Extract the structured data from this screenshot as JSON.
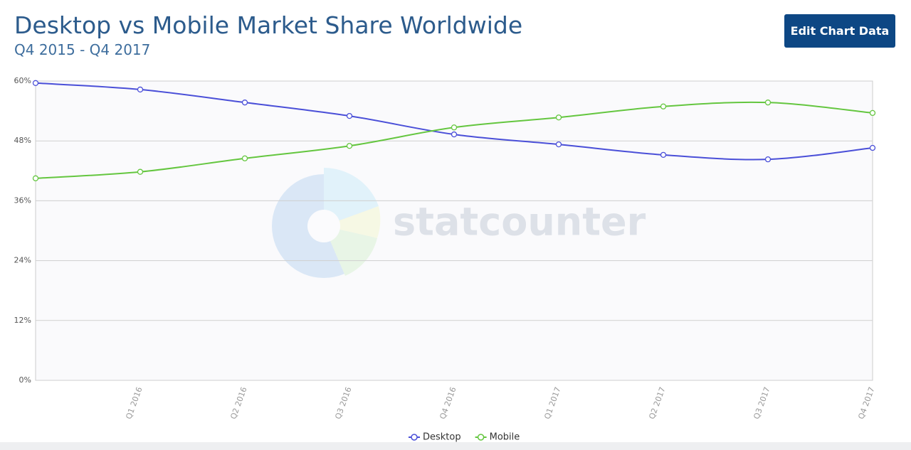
{
  "header": {
    "title": "Desktop vs Mobile Market Share Worldwide",
    "subtitle": "Q4 2015 - Q4 2017"
  },
  "button": {
    "label": "Edit Chart Data"
  },
  "watermark": "statcounter",
  "chart_data": {
    "type": "line",
    "categories": [
      null,
      "Q1 2016",
      "Q2 2016",
      "Q3 2016",
      "Q4 2016",
      "Q1 2017",
      "Q2 2017",
      "Q3 2017",
      "Q4 2017"
    ],
    "series": [
      {
        "name": "Desktop",
        "color": "#4a4fd8",
        "values": [
          59.6,
          58.3,
          55.7,
          53.0,
          49.3,
          47.3,
          45.2,
          44.3,
          46.6
        ]
      },
      {
        "name": "Mobile",
        "color": "#64c63f",
        "values": [
          40.5,
          41.8,
          44.5,
          47.0,
          50.7,
          52.7,
          54.9,
          55.7,
          53.6
        ]
      }
    ],
    "ylim": [
      0,
      60
    ],
    "yticks": [
      {
        "value": 0,
        "label": "0%"
      },
      {
        "value": 12,
        "label": "12%"
      },
      {
        "value": 24,
        "label": "24%"
      },
      {
        "value": 36,
        "label": "36%"
      },
      {
        "value": 48,
        "label": "48%"
      },
      {
        "value": 60,
        "label": "60%"
      }
    ],
    "grid": true,
    "legend": "bottom"
  }
}
